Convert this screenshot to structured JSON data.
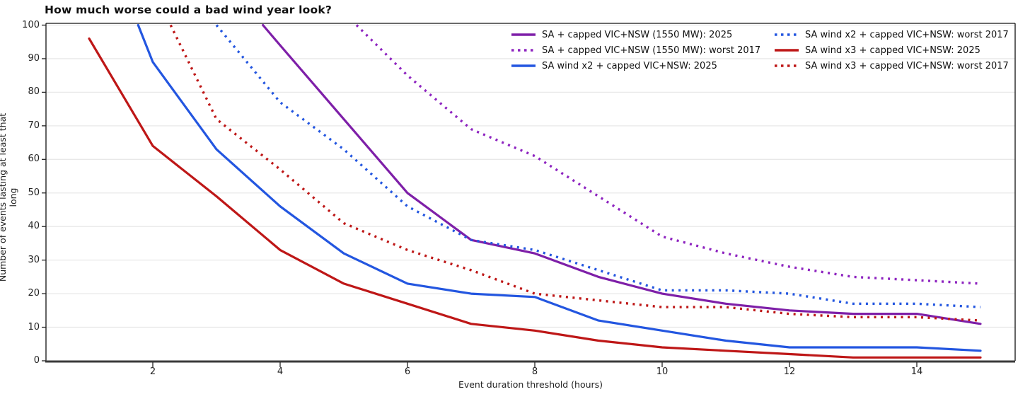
{
  "title": "How much worse could a bad wind year look?",
  "chart_data": {
    "type": "line",
    "title": "How much worse could a bad wind year look?",
    "xlabel": "Event duration threshold (hours)",
    "ylabel": "Number of events lasting at least that long",
    "xlim": [
      0.32,
      15.55
    ],
    "ylim": [
      0,
      100
    ],
    "xticks": [
      2,
      4,
      6,
      8,
      10,
      12,
      14
    ],
    "yticks": [
      0,
      10,
      20,
      30,
      40,
      50,
      60,
      70,
      80,
      90,
      100
    ],
    "grid": "horizontal-only, light gray",
    "legend_position": "upper center-right, 2 columns, frameless",
    "series": [
      {
        "name": "SA + capped VIC+NSW (1550 MW): 2025",
        "color": "#7E1FA8",
        "style": "solid",
        "points": [
          [
            3.73,
            100
          ],
          [
            4,
            94
          ],
          [
            5,
            72
          ],
          [
            6,
            50
          ],
          [
            7,
            36
          ],
          [
            8,
            32
          ],
          [
            9,
            25
          ],
          [
            10,
            20
          ],
          [
            11,
            17
          ],
          [
            12,
            15
          ],
          [
            13,
            14
          ],
          [
            14,
            14
          ],
          [
            15,
            11
          ]
        ]
      },
      {
        "name": "SA + capped VIC+NSW (1550 MW): worst 2017",
        "color": "#8E24C0",
        "style": "dotted",
        "points": [
          [
            5.2,
            100
          ],
          [
            6,
            85
          ],
          [
            7,
            69
          ],
          [
            8,
            61
          ],
          [
            9,
            49
          ],
          [
            10,
            37
          ],
          [
            11,
            32
          ],
          [
            12,
            28
          ],
          [
            13,
            25
          ],
          [
            14,
            24
          ],
          [
            15,
            23
          ]
        ]
      },
      {
        "name": "SA wind x2 + capped VIC+NSW: 2025",
        "color": "#2356E0",
        "style": "solid",
        "points": [
          [
            1.77,
            100
          ],
          [
            2,
            89
          ],
          [
            3,
            63
          ],
          [
            4,
            46
          ],
          [
            5,
            32
          ],
          [
            6,
            23
          ],
          [
            7,
            20
          ],
          [
            8,
            19
          ],
          [
            9,
            12
          ],
          [
            10,
            9
          ],
          [
            11,
            6
          ],
          [
            12,
            4
          ],
          [
            13,
            4
          ],
          [
            14,
            4
          ],
          [
            15,
            3
          ]
        ]
      },
      {
        "name": "SA wind x2 + capped VIC+NSW: worst 2017",
        "color": "#2356E0",
        "style": "dotted",
        "points": [
          [
            3,
            100
          ],
          [
            4,
            77
          ],
          [
            5,
            63
          ],
          [
            6,
            46
          ],
          [
            7,
            36
          ],
          [
            8,
            33
          ],
          [
            9,
            27
          ],
          [
            10,
            21
          ],
          [
            11,
            21
          ],
          [
            12,
            20
          ],
          [
            13,
            17
          ],
          [
            14,
            17
          ],
          [
            15,
            16
          ]
        ]
      },
      {
        "name": "SA wind x3 + capped VIC+NSW: 2025",
        "color": "#BE1717",
        "style": "solid",
        "points": [
          [
            1,
            96
          ],
          [
            2,
            64
          ],
          [
            3,
            49
          ],
          [
            4,
            33
          ],
          [
            5,
            23
          ],
          [
            6,
            17
          ],
          [
            7,
            11
          ],
          [
            8,
            9
          ],
          [
            9,
            6
          ],
          [
            10,
            4
          ],
          [
            11,
            3
          ],
          [
            12,
            2
          ],
          [
            13,
            1
          ],
          [
            14,
            1
          ],
          [
            15,
            1
          ]
        ]
      },
      {
        "name": "SA wind x3 + capped VIC+NSW: worst 2017",
        "color": "#BE1717",
        "style": "dotted",
        "points": [
          [
            2.28,
            100
          ],
          [
            3,
            72
          ],
          [
            4,
            57
          ],
          [
            5,
            41
          ],
          [
            6,
            33
          ],
          [
            7,
            27
          ],
          [
            8,
            20
          ],
          [
            9,
            18
          ],
          [
            10,
            16
          ],
          [
            11,
            16
          ],
          [
            12,
            14
          ],
          [
            13,
            13
          ],
          [
            14,
            13
          ],
          [
            15,
            12
          ]
        ]
      }
    ]
  },
  "style_colors": {
    "gridline": "#e8e8e8",
    "frame": "#111111",
    "bottom_spine": "#3a3a3a",
    "text": "#222222"
  }
}
